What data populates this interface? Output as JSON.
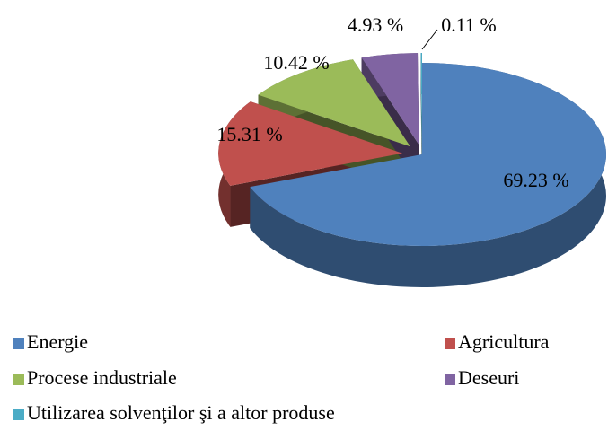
{
  "chart_data": {
    "type": "pie",
    "categories": [
      "Energie",
      "Agricultura",
      "Procese industriale",
      "Deseuri",
      "Utilizarea solvenţilor şi a altor produse"
    ],
    "values": [
      69.23,
      15.31,
      10.42,
      4.93,
      0.11
    ],
    "value_labels": [
      "69.23 %",
      "15.31 %",
      "10.42 %",
      "4.93 %",
      "0.11 %"
    ],
    "colors": [
      "#4f81bd",
      "#c0504d",
      "#9bbb59",
      "#8064a2",
      "#4bacc6"
    ],
    "legend": "bottom"
  }
}
